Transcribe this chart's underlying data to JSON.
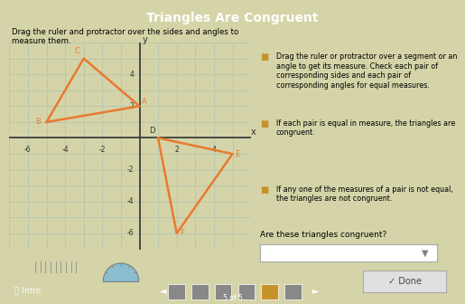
{
  "title": "Triangles Are Congruent",
  "bg_color": "#d4d4a8",
  "left_text": "Drag the ruler and protractor over the sides and angles to\nmeasure them.",
  "right_bullets": [
    "Drag the ruler or protractor over a segment or an angle to get its measure. Check each pair of corresponding sides and each pair of corresponding angles for equal measures.",
    "If each pair is equal in measure, the triangles are congruent.",
    "If any one of the measures of a pair is not equal, the triangles are not congruent."
  ],
  "question": "Are these triangles congruent?",
  "triangle1": {
    "B": [
      -5,
      1
    ],
    "C": [
      -3,
      5
    ],
    "A": [
      0,
      2
    ]
  },
  "triangle2": {
    "D": [
      1,
      0
    ],
    "E": [
      5,
      -1
    ],
    "F": [
      2,
      -6
    ]
  },
  "triangle_color": "#e87a30",
  "axis_color": "#333333",
  "grid_color": "#b0c4b0",
  "xlim": [
    -7,
    6
  ],
  "ylim": [
    -7,
    6
  ],
  "xticks": [
    -6,
    -4,
    -2,
    2,
    4
  ],
  "yticks": [
    -6,
    -4,
    -2,
    2,
    4
  ],
  "ruler_color": "#a8d8a8",
  "protractor_color": "#7ab8d8",
  "done_button_color": "#e0e0e0",
  "bottom_bar_color": "#c8922a",
  "page_indicator": "5 of 5"
}
